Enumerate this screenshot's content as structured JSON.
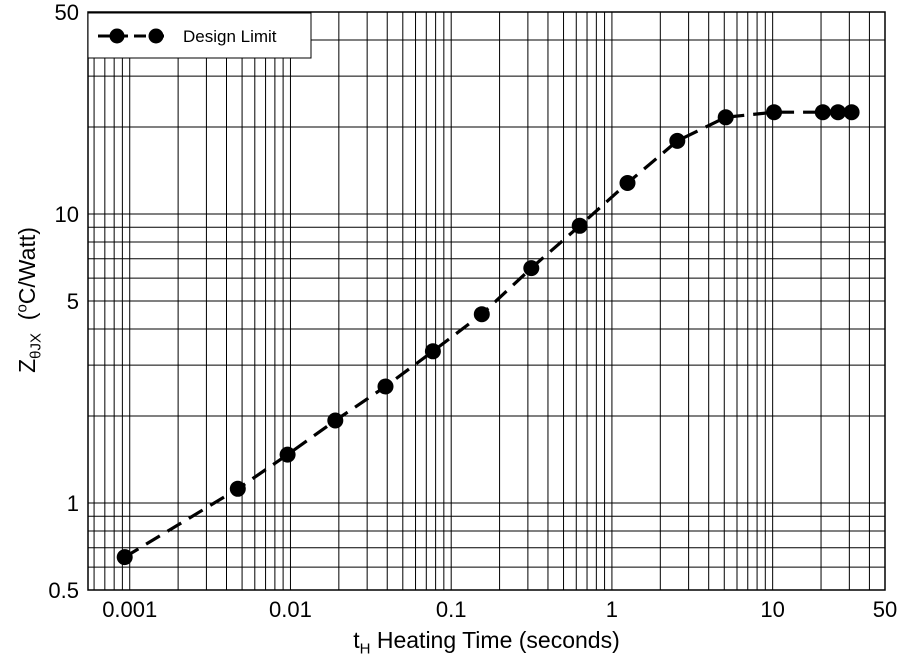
{
  "chart_data": {
    "type": "line",
    "title": "",
    "xlabel": {
      "sym": "t",
      "sub": "H",
      "text": " Heating Time (seconds)"
    },
    "ylabel": {
      "sym": "Z",
      "sub": "θJX",
      "pre": "(",
      "sup": "o",
      "unit": "C/Watt)"
    },
    "x_scale": "log",
    "y_scale": "log",
    "xlim": [
      0.00055,
      50
    ],
    "ylim": [
      0.5,
      50
    ],
    "x_ticks": [
      {
        "value": 0.001,
        "label": "0.001"
      },
      {
        "value": 0.01,
        "label": "0.01"
      },
      {
        "value": 0.1,
        "label": "0.1"
      },
      {
        "value": 1,
        "label": "1"
      },
      {
        "value": 10,
        "label": "10"
      },
      {
        "value": 50,
        "label": "50"
      }
    ],
    "y_ticks": [
      {
        "value": 0.5,
        "label": "0.5"
      },
      {
        "value": 1,
        "label": "1"
      },
      {
        "value": 5,
        "label": "5"
      },
      {
        "value": 10,
        "label": "10"
      },
      {
        "value": 50,
        "label": "50"
      }
    ],
    "grid": true,
    "legend_position": "top-left",
    "series": [
      {
        "name": "Design Limit",
        "style": "dashed",
        "marker": "circle",
        "color": "#000000",
        "x": [
          0.00093,
          0.0047,
          0.0096,
          0.019,
          0.039,
          0.077,
          0.155,
          0.315,
          0.63,
          1.25,
          2.55,
          5.1,
          10.2,
          20.5,
          25.5,
          31
        ],
        "y": [
          0.65,
          1.12,
          1.47,
          1.93,
          2.53,
          3.35,
          4.5,
          6.5,
          9.1,
          12.8,
          17.9,
          21.6,
          22.5,
          22.5,
          22.5,
          22.5
        ]
      }
    ]
  }
}
